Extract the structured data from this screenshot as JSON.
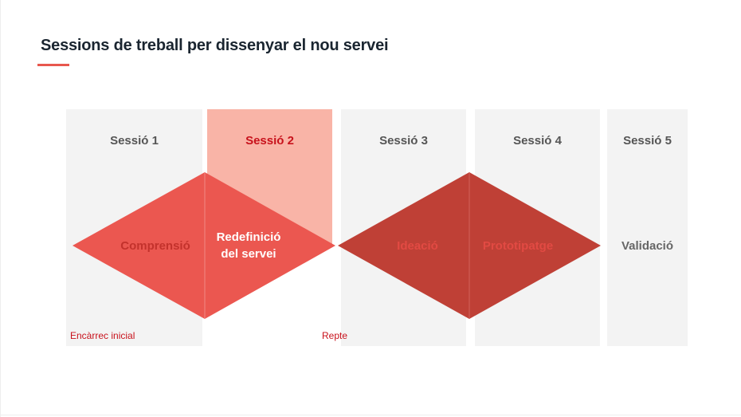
{
  "title": "Sessions de treball per dissenyar el nou servei",
  "sessions": [
    {
      "label": "Sessió 1"
    },
    {
      "label": "Sessió 2"
    },
    {
      "label": "Sessió 3"
    },
    {
      "label": "Sessió 4"
    },
    {
      "label": "Sessió 5"
    }
  ],
  "phases": {
    "comprensio": "Comprensió",
    "redefinicio_line1": "Redefinició",
    "redefinicio_line2": "del servei",
    "ideacio": "Ideació",
    "prototipatge": "Prototipatge",
    "validacio": "Validació"
  },
  "markers": {
    "start": "Encàrrec inicial",
    "middle": "Repte"
  },
  "colors": {
    "accent": "#e8574e",
    "active_column": "#f9b4a7",
    "diamond1": "#eb5750",
    "diamond2": "#bf4036",
    "active_text": "#c8121c"
  }
}
